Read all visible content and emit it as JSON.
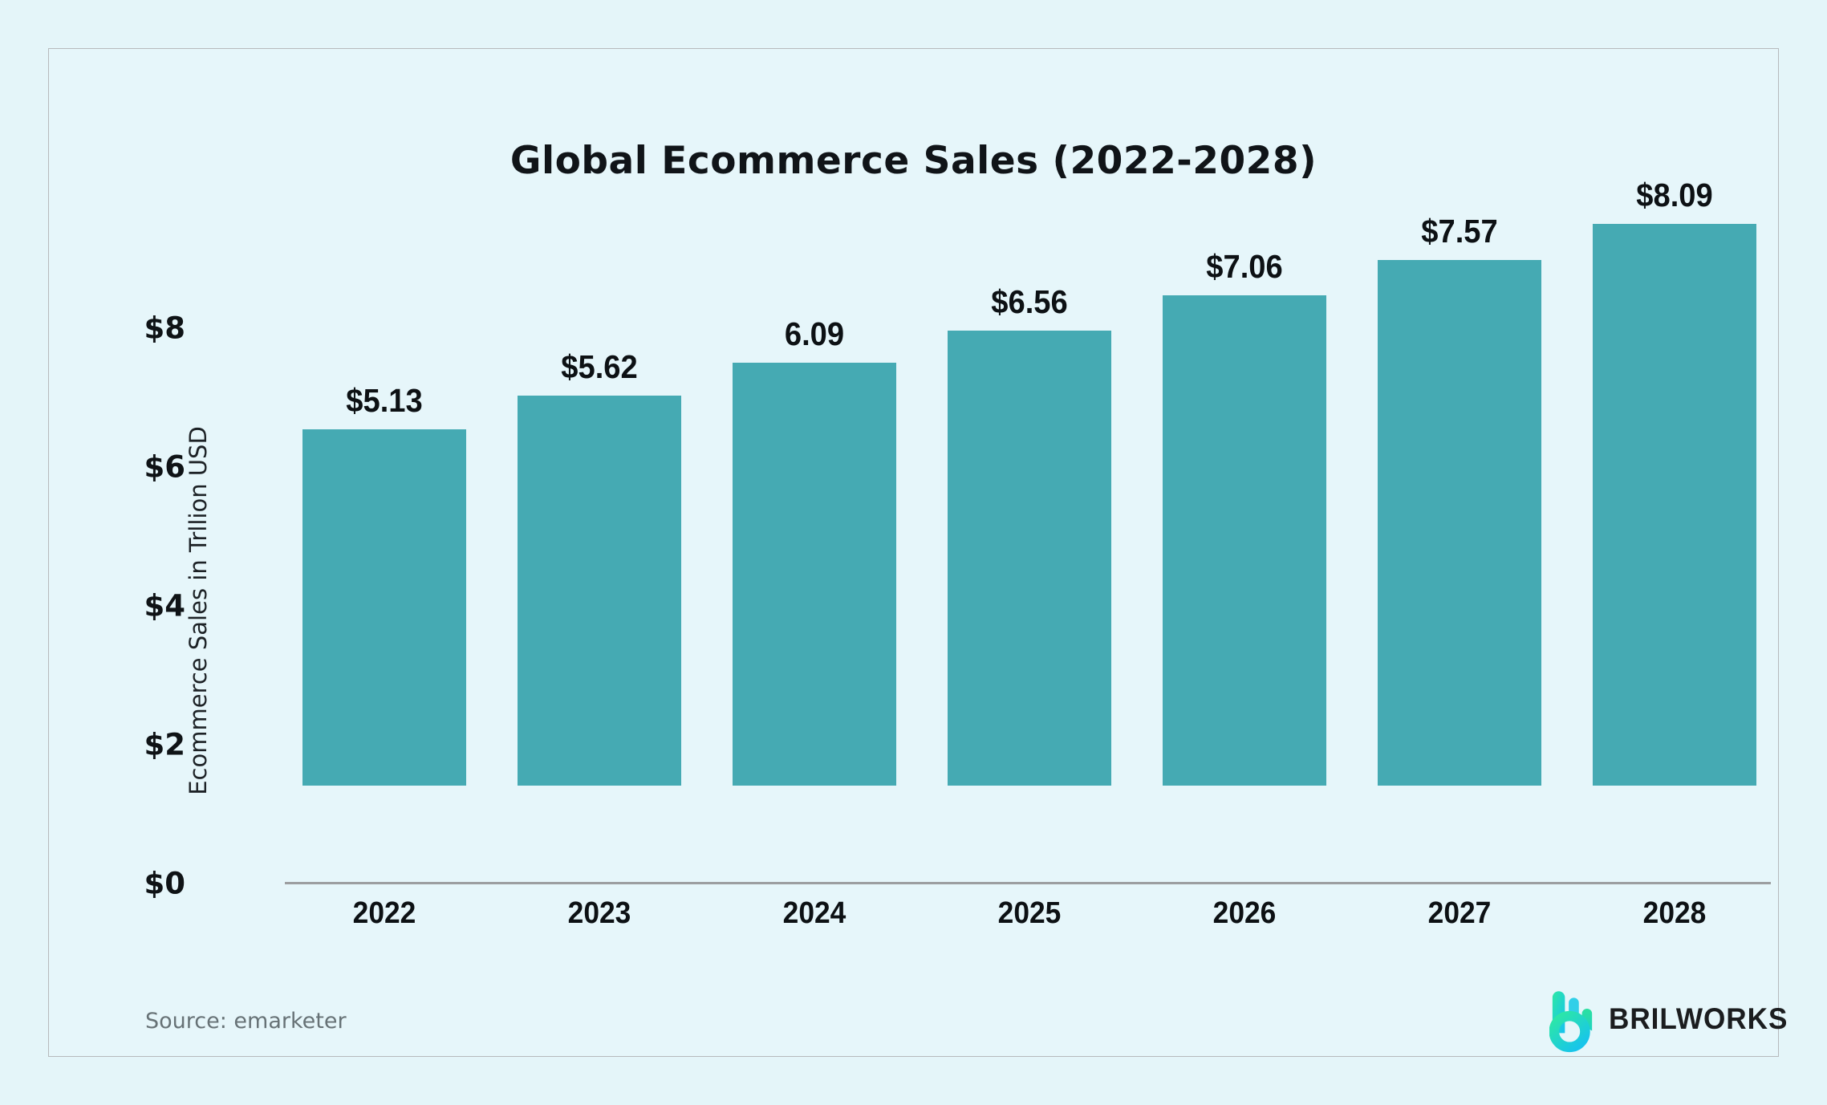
{
  "chart_data": {
    "type": "bar",
    "title": "Global Ecommerce Sales (2022-2028)",
    "xlabel": "",
    "ylabel": "Ecommerce Sales in Trllion USD",
    "categories": [
      "2022",
      "2023",
      "2024",
      "2025",
      "2026",
      "2027",
      "2028"
    ],
    "values": [
      5.13,
      5.62,
      6.09,
      6.56,
      7.06,
      7.57,
      8.09
    ],
    "value_labels": [
      "$5.13",
      "$5.62",
      "6.09",
      "$6.56",
      "$7.06",
      "$7.57",
      "$8.09"
    ],
    "y_ticks": [
      {
        "label": "$0",
        "value": 0
      },
      {
        "label": "$2",
        "value": 2
      },
      {
        "label": "$4",
        "value": 4
      },
      {
        "label": "$6",
        "value": 6
      },
      {
        "label": "$8",
        "value": 8
      }
    ],
    "ylim": [
      0,
      8.8
    ],
    "grid": false,
    "legend": null,
    "bar_color": "#45aab3"
  },
  "footer": {
    "source": "Source: emarketer",
    "brand": "BRILWORKS"
  },
  "colors": {
    "background": "#e4f5f9",
    "card_background": "#e6f6fa",
    "card_border": "#b7babc",
    "axis_line": "#9c9ea0",
    "bar": "#45aab3",
    "title_text": "#101418",
    "muted_text": "#677276",
    "logo_gradient_start": "#2de8a4",
    "logo_gradient_end": "#18c5ea"
  }
}
